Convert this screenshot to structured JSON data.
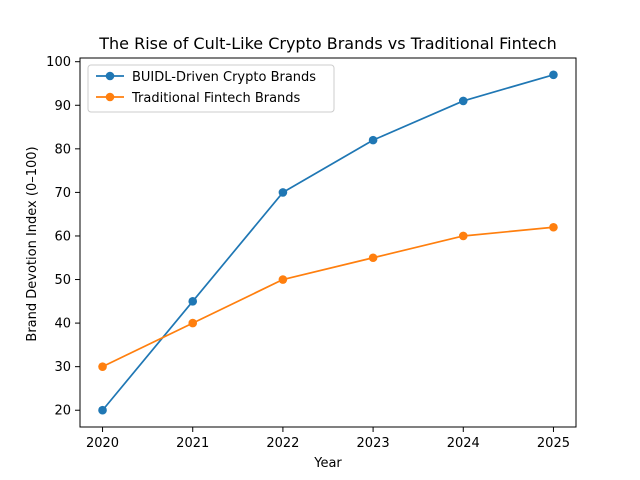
{
  "chart_data": {
    "type": "line",
    "title": "The Rise of Cult-Like Crypto Brands vs Traditional Fintech",
    "xlabel": "Year",
    "ylabel": "Brand Devotion Index (0–100)",
    "x": [
      2020,
      2021,
      2022,
      2023,
      2024,
      2025
    ],
    "x_ticks": [
      "2020",
      "2021",
      "2022",
      "2023",
      "2024",
      "2025"
    ],
    "y_ticks": [
      "20",
      "30",
      "40",
      "50",
      "60",
      "70",
      "80",
      "90",
      "100"
    ],
    "ylim": [
      16.15,
      100.85
    ],
    "grid": false,
    "legend_position": "upper-left",
    "series": [
      {
        "name": "BUIDL-Driven Crypto Brands",
        "color": "#1f77b4",
        "marker": "circle",
        "values": [
          20,
          45,
          70,
          82,
          91,
          97
        ]
      },
      {
        "name": "Traditional Fintech Brands",
        "color": "#ff7f0e",
        "marker": "circle",
        "values": [
          30,
          40,
          50,
          55,
          60,
          62
        ]
      }
    ]
  }
}
